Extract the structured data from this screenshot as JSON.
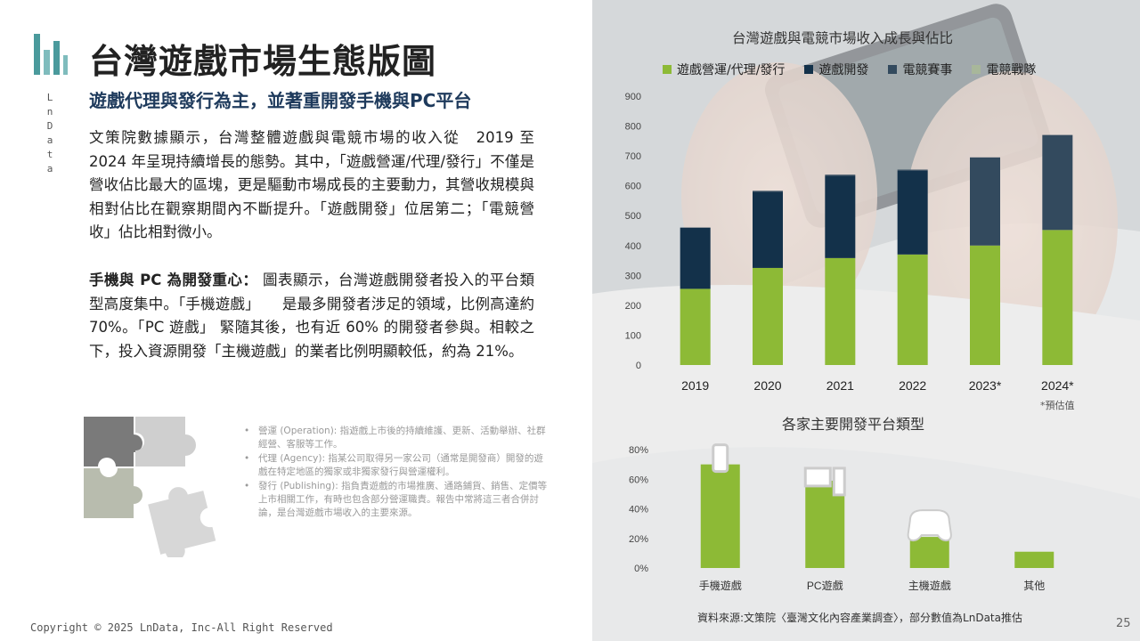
{
  "brand": {
    "name": "LnData"
  },
  "page": {
    "title": "台灣遊戲市場生態版圖",
    "subtitle": "遊戲代理與發行為主，並著重開發手機與PC平台",
    "para1": "文策院數據顯示，台灣整體遊戲與電競市場的收入從　2019 至　2024 年呈現持續增長的態勢。其中，「遊戲營運/代理/發行」不僅是營收佔比最大的區塊，更是驅動市場成長的主要動力，其營收規模與相對佔比在觀察期間內不斷提升。「遊戲開發」位居第二；「電競營收」佔比相對微小。",
    "para2_lead": "手機與 PC 為開發重心：",
    "para2": " 圖表顯示，台灣遊戲開發者投入的平台類型高度集中。「手機遊戲」　　是最多開發者涉足的領域，比例高達約 70%。「PC 遊戲」 緊隨其後，也有近 60% 的開發者參與。相較之下，投入資源開發「主機遊戲」的業者比例明顯較低，約為 21%。",
    "definitions": [
      "營運 (Operation): 指遊戲上市後的持續維護、更新、活動舉辦、社群經營、客服等工作。",
      "代理 (Agency): 指某公司取得另一家公司（通常是開發商）開發的遊戲在特定地區的獨家或非獨家發行與營運權利。",
      "發行 (Publishing): 指負責遊戲的市場推廣、通路鋪貨、銷售、定價等上市相關工作，有時也包含部分營運職責。報告中常將這三者合併討論，是台灣遊戲市場收入的主要來源。"
    ],
    "copyright": "Copyright © 2025 LnData, Inc-All Right Reserved",
    "source": "資料來源:文策院〈臺灣文化內容產業調查〉，部分數值為LnData推估",
    "page_number": "25",
    "estimate_note": "*預估值"
  },
  "colors": {
    "operation": "#8dba36",
    "development": "#13314a",
    "esports_events": "#334a5e",
    "esports_teams": "#a8b79a",
    "accent_teal": "#4a9a9c",
    "title_navy": "#1e3a5c"
  },
  "chart_data": [
    {
      "type": "bar",
      "stacked": true,
      "title": "台灣遊戲與電競市場收入成長與佔比",
      "categories": [
        "2019",
        "2020",
        "2021",
        "2022",
        "2023*",
        "2024*"
      ],
      "series": [
        {
          "name": "遊戲營運/代理/發行",
          "color": "#8dba36",
          "values": [
            255,
            325,
            358,
            370,
            400,
            452
          ]
        },
        {
          "name": "遊戲開發",
          "color": "#13314a",
          "values": [
            205,
            255,
            275,
            280,
            0,
            0
          ]
        },
        {
          "name": "電競賽事",
          "color": "#334a5e",
          "values": [
            0,
            3,
            4,
            4,
            295,
            318
          ]
        },
        {
          "name": "電競戰隊",
          "color": "#a8b79a",
          "values": [
            0,
            0,
            0,
            0,
            0,
            0
          ]
        }
      ],
      "ylim": [
        0,
        900
      ],
      "yticks": [
        "0",
        "100",
        "200",
        "300",
        "400",
        "500",
        "600",
        "700",
        "800",
        "900"
      ],
      "legend_position": "top",
      "grid": false
    },
    {
      "type": "bar",
      "title": "各家主要開發平台類型",
      "categories": [
        "手機遊戲",
        "PC遊戲",
        "主機遊戲",
        "其他"
      ],
      "values": [
        70,
        59,
        21,
        11
      ],
      "icons": [
        "mobile-phone-icon",
        "pc-icon",
        "gamepad-icon",
        ""
      ],
      "color": "#8dba36",
      "ylim": [
        0,
        80
      ],
      "yticks": [
        "0%",
        "20%",
        "40%",
        "60%",
        "80%"
      ],
      "grid": false
    }
  ]
}
